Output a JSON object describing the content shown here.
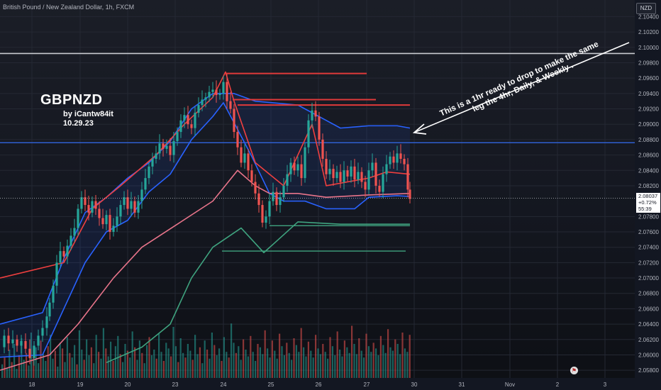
{
  "header": {
    "symbol_title": "British Pound / New Zealand Dollar, 1h, FXCM",
    "currency": "NZD"
  },
  "chart_data": {
    "type": "candlestick",
    "title": "GBPNZD",
    "author": "by iCantw84it",
    "date": "10.29.23",
    "annotation_line1": "This is a 1hr ready to drop to make the same",
    "annotation_line2": "leg the 4hr,  Daily, & Weekly .",
    "y_axis": {
      "ticks": [
        "2.10400",
        "2.10200",
        "2.10000",
        "2.09800",
        "2.09600",
        "2.09400",
        "2.09200",
        "2.09000",
        "2.08800",
        "2.08600",
        "2.08400",
        "2.08200",
        "2.07800",
        "2.07600",
        "2.07400",
        "2.07200",
        "2.07000",
        "2.06800",
        "2.06600",
        "2.06400",
        "2.06200",
        "2.06000",
        "2.05800"
      ],
      "range": [
        2.057,
        2.1057
      ]
    },
    "x_axis": {
      "ticks": [
        "18",
        "19",
        "20",
        "23",
        "24",
        "25",
        "26",
        "27",
        "30",
        "31",
        "Nov",
        "2",
        "3"
      ]
    },
    "current_price": {
      "price": "2.08037",
      "change": "+0.72%",
      "countdown": "55:39",
      "color": "#ffffff"
    },
    "horizontal_levels": [
      {
        "price": 2.0992,
        "color": "#c9cbd1"
      },
      {
        "price": 2.0876,
        "color": "#2f5fd0"
      }
    ],
    "price_path": [
      [
        0,
        2.061
      ],
      [
        6,
        2.0625
      ],
      [
        12,
        2.0615
      ],
      [
        18,
        2.062
      ],
      [
        24,
        2.0612
      ],
      [
        30,
        2.0618
      ],
      [
        36,
        2.0608
      ],
      [
        42,
        2.0596
      ],
      [
        48,
        2.0612
      ],
      [
        54,
        2.0625
      ],
      [
        60,
        2.0635
      ],
      [
        66,
        2.065
      ],
      [
        70,
        2.0668
      ],
      [
        75,
        2.069
      ],
      [
        80,
        2.072
      ],
      [
        85,
        2.0735
      ],
      [
        90,
        2.0728
      ],
      [
        95,
        2.0742
      ],
      [
        100,
        2.0755
      ],
      [
        105,
        2.0765
      ],
      [
        110,
        2.079
      ],
      [
        115,
        2.0805
      ],
      [
        120,
        2.0795
      ],
      [
        125,
        2.0785
      ],
      [
        130,
        2.08
      ],
      [
        135,
        2.079
      ],
      [
        140,
        2.0778
      ],
      [
        145,
        2.077
      ],
      [
        150,
        2.0782
      ],
      [
        155,
        2.076
      ],
      [
        160,
        2.0768
      ],
      [
        165,
        2.078
      ],
      [
        170,
        2.0795
      ],
      [
        175,
        2.0805
      ],
      [
        180,
        2.079
      ],
      [
        185,
        2.08
      ],
      [
        190,
        2.0785
      ],
      [
        195,
        2.08
      ],
      [
        200,
        2.0815
      ],
      [
        205,
        2.083
      ],
      [
        210,
        2.0845
      ],
      [
        215,
        2.0855
      ],
      [
        220,
        2.0862
      ],
      [
        225,
        2.0875
      ],
      [
        230,
        2.0868
      ],
      [
        235,
        2.0872
      ],
      [
        240,
        2.086
      ],
      [
        245,
        2.0878
      ],
      [
        250,
        2.089
      ],
      [
        255,
        2.0905
      ],
      [
        260,
        2.0912
      ],
      [
        265,
        2.09
      ],
      [
        270,
        2.0895
      ],
      [
        275,
        2.0915
      ],
      [
        280,
        2.0925
      ],
      [
        285,
        2.0932
      ],
      [
        290,
        2.0935
      ],
      [
        295,
        2.0942
      ],
      [
        300,
        2.0945
      ],
      [
        305,
        2.0938
      ],
      [
        310,
        2.094
      ],
      [
        315,
        2.0955
      ],
      [
        320,
        2.093
      ],
      [
        325,
        2.092
      ],
      [
        330,
        2.089
      ],
      [
        335,
        2.087
      ],
      [
        340,
        2.085
      ],
      [
        345,
        2.0862
      ],
      [
        350,
        2.084
      ],
      [
        355,
        2.0825
      ],
      [
        360,
        2.081
      ],
      [
        365,
        2.0795
      ],
      [
        370,
        2.0772
      ],
      [
        375,
        2.078
      ],
      [
        380,
        2.08
      ],
      [
        385,
        2.0812
      ],
      [
        390,
        2.0795
      ],
      [
        395,
        2.0805
      ],
      [
        400,
        2.082
      ],
      [
        405,
        2.0835
      ],
      [
        410,
        2.085
      ],
      [
        415,
        2.084
      ],
      [
        420,
        2.0848
      ],
      [
        425,
        2.083
      ],
      [
        430,
        2.087
      ],
      [
        435,
        2.0905
      ],
      [
        440,
        2.0918
      ],
      [
        445,
        2.091
      ],
      [
        450,
        2.088
      ],
      [
        455,
        2.0855
      ],
      [
        460,
        2.0835
      ],
      [
        465,
        2.0842
      ],
      [
        470,
        2.083
      ],
      [
        475,
        2.0838
      ],
      [
        480,
        2.0825
      ],
      [
        485,
        2.084
      ],
      [
        490,
        2.0832
      ],
      [
        495,
        2.0845
      ],
      [
        500,
        2.0828
      ],
      [
        505,
        2.0838
      ],
      [
        510,
        2.0825
      ],
      [
        515,
        2.0815
      ],
      [
        520,
        2.084
      ],
      [
        525,
        2.085
      ],
      [
        530,
        2.082
      ],
      [
        535,
        2.0812
      ],
      [
        540,
        2.0835
      ],
      [
        545,
        2.0848
      ],
      [
        550,
        2.0858
      ],
      [
        555,
        2.085
      ],
      [
        560,
        2.0862
      ],
      [
        565,
        2.0855
      ],
      [
        570,
        2.0848
      ],
      [
        575,
        2.0815
      ],
      [
        578,
        2.0803
      ]
    ],
    "series": [
      {
        "name": "",
        "color": "#2962ff",
        "points": [
          [
            0,
            2.0597
          ],
          [
            60,
            2.06
          ],
          [
            90,
            2.066
          ],
          [
            120,
            2.072
          ],
          [
            150,
            2.076
          ],
          [
            180,
            2.0775
          ],
          [
            210,
            2.0812
          ],
          [
            240,
            2.0835
          ],
          [
            270,
            2.088
          ],
          [
            300,
            2.091
          ],
          [
            315,
            2.0928
          ],
          [
            330,
            2.0902
          ],
          [
            355,
            2.0858
          ],
          [
            380,
            2.081
          ],
          [
            400,
            2.08
          ],
          [
            430,
            2.08
          ],
          [
            460,
            2.079
          ],
          [
            500,
            2.079
          ],
          [
            520,
            2.0805
          ],
          [
            560,
            2.0807
          ],
          [
            578,
            2.0806
          ]
        ]
      },
      {
        "name": "",
        "color": "#2962ff",
        "points": [
          [
            0,
            2.064
          ],
          [
            60,
            2.0655
          ],
          [
            90,
            2.0725
          ],
          [
            120,
            2.0785
          ],
          [
            150,
            2.0805
          ],
          [
            180,
            2.083
          ],
          [
            210,
            2.085
          ],
          [
            240,
            2.0878
          ],
          [
            270,
            2.092
          ],
          [
            300,
            2.094
          ],
          [
            330,
            2.094
          ],
          [
            360,
            2.093
          ],
          [
            420,
            2.0925
          ],
          [
            460,
            2.0905
          ],
          [
            480,
            2.0895
          ],
          [
            520,
            2.0898
          ],
          [
            560,
            2.0898
          ],
          [
            578,
            2.0895
          ]
        ]
      },
      {
        "name": "",
        "color": "#e8748a",
        "points": [
          [
            0,
            2.058
          ],
          [
            70,
            2.06
          ],
          [
            110,
            2.064
          ],
          [
            160,
            2.07
          ],
          [
            200,
            2.074
          ],
          [
            250,
            2.077
          ],
          [
            300,
            2.08
          ],
          [
            335,
            2.084
          ],
          [
            360,
            2.082
          ],
          [
            380,
            2.081
          ],
          [
            420,
            2.081
          ],
          [
            460,
            2.0805
          ],
          [
            520,
            2.0808
          ],
          [
            578,
            2.081
          ]
        ]
      },
      {
        "name": "",
        "color": "#ef3f3f",
        "points": [
          [
            0,
            2.07
          ],
          [
            90,
            2.072
          ],
          [
            130,
            2.079
          ],
          [
            170,
            2.082
          ],
          [
            220,
            2.086
          ],
          [
            260,
            2.09
          ],
          [
            300,
            2.0935
          ],
          [
            318,
            2.0968
          ],
          [
            330,
            2.093
          ],
          [
            360,
            2.085
          ],
          [
            400,
            2.082
          ],
          [
            440,
            2.09
          ],
          [
            460,
            2.082
          ],
          [
            520,
            2.083
          ],
          [
            545,
            2.0838
          ],
          [
            578,
            2.0835
          ]
        ]
      },
      {
        "name": "",
        "color": "#3fa37f",
        "points": [
          [
            150,
            2.059
          ],
          [
            200,
            2.061
          ],
          [
            240,
            2.064
          ],
          [
            270,
            2.07
          ],
          [
            300,
            2.074
          ],
          [
            340,
            2.0765
          ],
          [
            372,
            2.0733
          ],
          [
            420,
            2.0773
          ],
          [
            480,
            2.077
          ],
          [
            578,
            2.077
          ]
        ]
      }
    ],
    "red_levels": [
      {
        "x1": 316,
        "x2": 517,
        "price": 2.0966
      },
      {
        "x1": 328,
        "x2": 530,
        "price": 2.0932
      },
      {
        "x1": 335,
        "x2": 578,
        "price": 2.0925
      }
    ],
    "green_levels": [
      {
        "x1": 380,
        "x2": 578,
        "price": 2.0768
      },
      {
        "x1": 313,
        "x2": 572,
        "price": 2.0735
      }
    ],
    "volume": [
      12,
      18,
      9,
      25,
      14,
      30,
      8,
      20,
      35,
      16,
      22,
      11,
      40,
      19,
      27,
      13,
      33,
      21,
      15,
      28,
      38,
      17,
      24,
      10,
      31,
      26,
      14,
      36,
      22,
      18,
      29,
      12,
      42,
      25,
      16,
      34,
      20,
      27,
      13,
      38,
      23,
      17,
      44,
      26,
      19,
      32,
      15,
      28,
      37,
      21,
      14,
      30,
      24,
      18,
      41,
      27,
      16,
      33,
      22,
      13,
      29,
      36,
      20,
      25,
      17,
      39,
      23,
      15,
      31,
      26,
      19,
      45,
      28,
      14,
      35,
      22,
      18,
      30,
      24,
      16,
      38,
      21,
      27,
      13,
      33,
      25,
      17,
      40,
      29,
      20,
      26,
      15,
      36,
      23,
      18,
      48,
      31,
      22,
      28,
      16,
      34,
      25,
      19,
      37,
      23,
      15,
      30,
      27,
      21,
      42,
      26,
      18,
      33,
      24,
      17,
      39,
      28,
      20,
      31,
      22,
      16,
      35,
      29,
      23,
      44,
      27,
      19,
      32,
      24,
      18,
      38,
      26,
      21,
      30,
      23,
      17,
      36,
      28,
      20,
      41,
      25,
      19,
      33,
      27,
      22,
      46,
      30,
      21,
      35,
      24,
      18,
      39,
      28,
      23,
      31,
      26,
      20,
      37,
      29,
      22,
      43,
      27,
      24,
      34,
      30,
      21,
      40,
      26,
      23,
      38
    ]
  }
}
